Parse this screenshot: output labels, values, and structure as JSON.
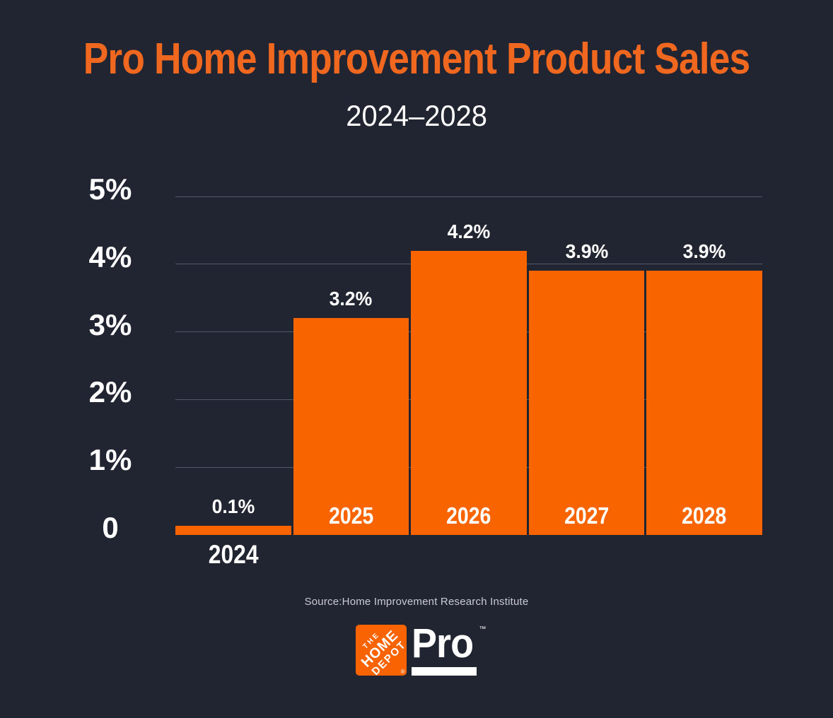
{
  "header": {
    "title": "Pro Home Improvement Product Sales",
    "subtitle": "2024–2028"
  },
  "chart_data": {
    "type": "bar",
    "title": "Pro Home Improvement Product Sales",
    "subtitle": "2024–2028",
    "categories": [
      "2024",
      "2025",
      "2026",
      "2027",
      "2028"
    ],
    "values": [
      0.1,
      3.2,
      4.2,
      3.9,
      3.9
    ],
    "value_labels": [
      "0.1%",
      "3.2%",
      "4.2%",
      "3.9%",
      "3.9%"
    ],
    "y_ticks": [
      {
        "label": "5%",
        "value": 5
      },
      {
        "label": "4%",
        "value": 4
      },
      {
        "label": "3%",
        "value": 3
      },
      {
        "label": "2%",
        "value": 2
      },
      {
        "label": "1%",
        "value": 1
      },
      {
        "label": "0",
        "value": 0
      }
    ],
    "ylim": [
      0,
      5
    ],
    "grid": true,
    "legend": false,
    "bar_color": "#F76400",
    "source": "Source:Home Improvement Research Institute"
  },
  "colors": {
    "background": "#212431",
    "bar": "#F76400",
    "title": "#F0681F",
    "grid": "#545A6D",
    "text": "#FFFFFF",
    "source_text": "#C8CCD5",
    "logo_square": "#F96302"
  },
  "footer": {
    "source": "Source:Home Improvement Research Institute"
  },
  "logo": {
    "the": "THE",
    "home": "HOME",
    "depot": "DEPOT",
    "registered": "®",
    "pro": "Pro",
    "trademark": "™"
  }
}
